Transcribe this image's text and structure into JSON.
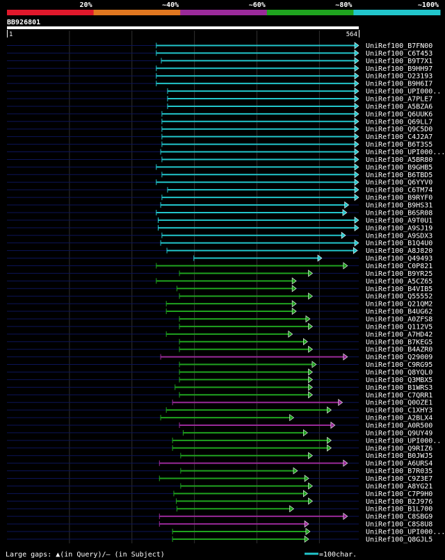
{
  "chart_data": {
    "type": "alignment-overview",
    "query_id": "BB926801",
    "query_start": "1",
    "query_end": "564",
    "query_length": 564,
    "identity_legend": [
      {
        "label": "20%",
        "color": "#e0182b"
      },
      {
        "label": "~40%",
        "color": "#e07720"
      },
      {
        "label": "~60%",
        "color": "#9a2a9a"
      },
      {
        "label": "~80%",
        "color": "#1fa31f"
      },
      {
        "label": "~100%",
        "color": "#22c6cc"
      }
    ],
    "hits": [
      {
        "name": "UniRef100_B7FN00",
        "start": 240,
        "end": 564,
        "identity": "~100%"
      },
      {
        "name": "UniRef100_C6T453",
        "start": 240,
        "end": 564,
        "identity": "~100%"
      },
      {
        "name": "UniRef100_B9T7X1",
        "start": 248,
        "end": 564,
        "identity": "~100%"
      },
      {
        "name": "UniRef100_B9HH97",
        "start": 240,
        "end": 564,
        "identity": "~100%"
      },
      {
        "name": "UniRef100_O23193",
        "start": 240,
        "end": 564,
        "identity": "~100%"
      },
      {
        "name": "UniRef100_B9H6I7",
        "start": 240,
        "end": 564,
        "identity": "~100%"
      },
      {
        "name": "UniRef100_UPI000..",
        "start": 258,
        "end": 564,
        "identity": "~100%"
      },
      {
        "name": "UniRef100_A7PLE7",
        "start": 258,
        "end": 564,
        "identity": "~100%"
      },
      {
        "name": "UniRef100_A5BZA6",
        "start": 258,
        "end": 564,
        "identity": "~100%"
      },
      {
        "name": "UniRef100_Q6UUK6",
        "start": 249,
        "end": 564,
        "identity": "~100%"
      },
      {
        "name": "UniRef100_Q69LL7",
        "start": 249,
        "end": 564,
        "identity": "~100%"
      },
      {
        "name": "UniRef100_Q9C5D0",
        "start": 249,
        "end": 564,
        "identity": "~100%"
      },
      {
        "name": "UniRef100_C4J2A7",
        "start": 249,
        "end": 564,
        "identity": "~100%"
      },
      {
        "name": "UniRef100_B6T3S5",
        "start": 249,
        "end": 564,
        "identity": "~100%"
      },
      {
        "name": "UniRef100_UPI000...",
        "start": 247,
        "end": 564,
        "identity": "~100%"
      },
      {
        "name": "UniRef100_A5BR80",
        "start": 249,
        "end": 564,
        "identity": "~100%"
      },
      {
        "name": "UniRef100_B9GHB5",
        "start": 240,
        "end": 564,
        "identity": "~100%"
      },
      {
        "name": "UniRef100_B6TBD5",
        "start": 249,
        "end": 564,
        "identity": "~100%"
      },
      {
        "name": "UniRef100_Q6YYV0",
        "start": 240,
        "end": 564,
        "identity": "~100%"
      },
      {
        "name": "UniRef100_C6TM74",
        "start": 258,
        "end": 564,
        "identity": "~100%"
      },
      {
        "name": "UniRef100_B9RYF0",
        "start": 249,
        "end": 564,
        "identity": "~100%"
      },
      {
        "name": "UniRef100_B9HS31",
        "start": 247,
        "end": 548,
        "identity": "~100%"
      },
      {
        "name": "UniRef100_B6SR08",
        "start": 240,
        "end": 545,
        "identity": "~100%"
      },
      {
        "name": "UniRef100_A9T0U1",
        "start": 243,
        "end": 564,
        "identity": "~100%"
      },
      {
        "name": "UniRef100_A9SJ19",
        "start": 243,
        "end": 564,
        "identity": "~100%"
      },
      {
        "name": "UniRef100_A9SDX3",
        "start": 249,
        "end": 543,
        "identity": "~100%"
      },
      {
        "name": "UniRef100_B1Q4U0",
        "start": 247,
        "end": 564,
        "identity": "~100%"
      },
      {
        "name": "UniRef100_A8J820",
        "start": 257,
        "end": 562,
        "identity": "~100%"
      },
      {
        "name": "UniRef100_Q49493",
        "start": 300,
        "end": 505,
        "identity": "~100%"
      },
      {
        "name": "UniRef100_C0P821",
        "start": 240,
        "end": 546,
        "identity": "~80%"
      },
      {
        "name": "UniRef100_B9YR25",
        "start": 277,
        "end": 490,
        "identity": "~80%"
      },
      {
        "name": "UniRef100_A5CZ65",
        "start": 240,
        "end": 464,
        "identity": "~80%"
      },
      {
        "name": "UniRef100_B4VIB5",
        "start": 273,
        "end": 464,
        "identity": "~80%"
      },
      {
        "name": "UniRef100_Q55552",
        "start": 277,
        "end": 490,
        "identity": "~80%"
      },
      {
        "name": "UniRef100_Q21QM2",
        "start": 256,
        "end": 464,
        "identity": "~80%"
      },
      {
        "name": "UniRef100_B4UG62",
        "start": 256,
        "end": 464,
        "identity": "~80%"
      },
      {
        "name": "UniRef100_A0ZFS8",
        "start": 277,
        "end": 486,
        "identity": "~80%"
      },
      {
        "name": "UniRef100_Q112V5",
        "start": 277,
        "end": 490,
        "identity": "~80%"
      },
      {
        "name": "UniRef100_A7HD42",
        "start": 256,
        "end": 458,
        "identity": "~80%"
      },
      {
        "name": "UniRef100_B7KEG5",
        "start": 277,
        "end": 482,
        "identity": "~80%"
      },
      {
        "name": "UniRef100_B4AZR0",
        "start": 277,
        "end": 490,
        "identity": "~80%"
      },
      {
        "name": "UniRef100_Q29009",
        "start": 247,
        "end": 546,
        "identity": "~60%"
      },
      {
        "name": "UniRef100_C9RG95",
        "start": 277,
        "end": 496,
        "identity": "~80%"
      },
      {
        "name": "UniRef100_Q8YQL0",
        "start": 277,
        "end": 490,
        "identity": "~80%"
      },
      {
        "name": "UniRef100_Q3MBX5",
        "start": 277,
        "end": 490,
        "identity": "~80%"
      },
      {
        "name": "UniRef100_B1WRS3",
        "start": 270,
        "end": 490,
        "identity": "~80%"
      },
      {
        "name": "UniRef100_C7QRR1",
        "start": 277,
        "end": 490,
        "identity": "~80%"
      },
      {
        "name": "UniRef100_Q0OZE1",
        "start": 266,
        "end": 538,
        "identity": "~60%"
      },
      {
        "name": "UniRef100_C1XHY3",
        "start": 256,
        "end": 520,
        "identity": "~80%"
      },
      {
        "name": "UniRef100_A2BLX4",
        "start": 247,
        "end": 460,
        "identity": "~80%"
      },
      {
        "name": "UniRef100_A0R500",
        "start": 277,
        "end": 526,
        "identity": "~60%"
      },
      {
        "name": "UniRef100_Q9UY49",
        "start": 283,
        "end": 482,
        "identity": "~80%"
      },
      {
        "name": "UniRef100_UPI000..",
        "start": 266,
        "end": 520,
        "identity": "~80%"
      },
      {
        "name": "UniRef100_Q9RIZ6",
        "start": 266,
        "end": 520,
        "identity": "~80%"
      },
      {
        "name": "UniRef100_B0JWJ5",
        "start": 279,
        "end": 490,
        "identity": "~80%"
      },
      {
        "name": "UniRef100_A6URS4",
        "start": 245,
        "end": 546,
        "identity": "~60%"
      },
      {
        "name": "UniRef100_B7R035",
        "start": 279,
        "end": 466,
        "identity": "~80%"
      },
      {
        "name": "UniRef100_C9Z3E7",
        "start": 245,
        "end": 484,
        "identity": "~80%"
      },
      {
        "name": "UniRef100_A8YG21",
        "start": 279,
        "end": 490,
        "identity": "~80%"
      },
      {
        "name": "UniRef100_C7P9H0",
        "start": 268,
        "end": 482,
        "identity": "~80%"
      },
      {
        "name": "UniRef100_B2J976",
        "start": 272,
        "end": 490,
        "identity": "~80%"
      },
      {
        "name": "UniRef100_B1L700",
        "start": 273,
        "end": 460,
        "identity": "~80%"
      },
      {
        "name": "UniRef100_C8SBG9",
        "start": 245,
        "end": 546,
        "identity": "~60%"
      },
      {
        "name": "UniRef100_C8S8U8",
        "start": 245,
        "end": 484,
        "identity": "~60%"
      },
      {
        "name": "UniRef100_UPI000...",
        "start": 266,
        "end": 486,
        "identity": "~80%"
      },
      {
        "name": "UniRef100_Q8GJL5",
        "start": 266,
        "end": 484,
        "identity": "~80%"
      }
    ]
  },
  "legend": {
    "gaps_text": "Large gaps: ▲(in Query)/– (in Subject)",
    "scale_text": "=100char."
  }
}
